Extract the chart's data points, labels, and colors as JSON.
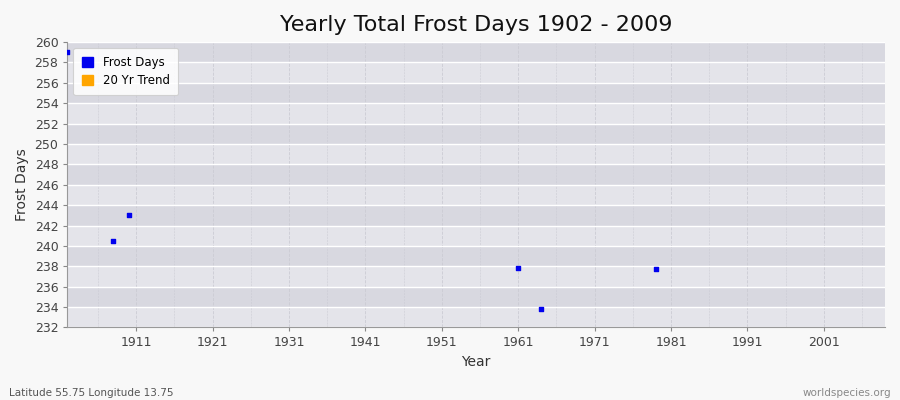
{
  "title": "Yearly Total Frost Days 1902 - 2009",
  "xlabel": "Year",
  "ylabel": "Frost Days",
  "bottom_left_label": "Latitude 55.75 Longitude 13.75",
  "bottom_right_label": "worldspecies.org",
  "ylim": [
    232,
    260
  ],
  "xlim": [
    1902,
    2009
  ],
  "yticks": [
    232,
    234,
    236,
    238,
    240,
    242,
    244,
    246,
    248,
    250,
    252,
    254,
    256,
    258,
    260
  ],
  "xticks": [
    1911,
    1921,
    1931,
    1941,
    1951,
    1961,
    1971,
    1981,
    1991,
    2001
  ],
  "frost_days_x": [
    1902,
    1908,
    1910,
    1961,
    1964,
    1979
  ],
  "frost_days_y": [
    259,
    240.5,
    243,
    237.8,
    233.8,
    237.7
  ],
  "frost_color": "#0000ee",
  "trend_color": "#ffa500",
  "bg_color": "#f8f8f8",
  "plot_bg_color": "#e8e8ec",
  "band_color_light": "#e4e4ea",
  "band_color_dark": "#d8d8e0",
  "grid_major_color": "#ffffff",
  "grid_minor_color": "#cbcbd4",
  "legend_entries": [
    "Frost Days",
    "20 Yr Trend"
  ],
  "title_fontsize": 16,
  "label_fontsize": 10,
  "tick_fontsize": 9
}
